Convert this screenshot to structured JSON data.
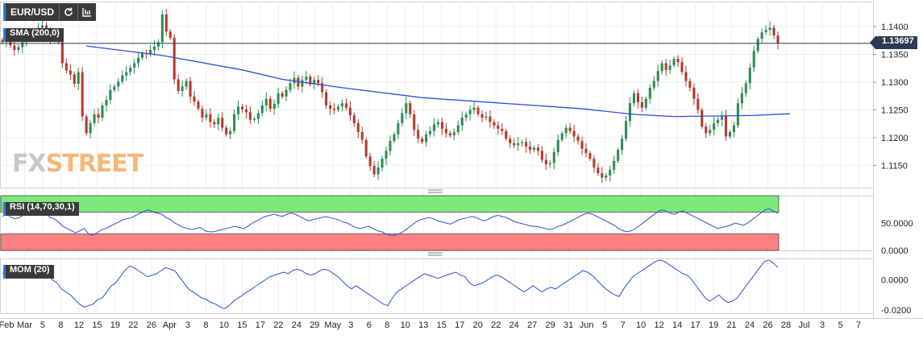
{
  "toolbar": {
    "symbol": "EUR/USD",
    "refresh_icon": "refresh-icon",
    "indicators_icon": "indicators-icon"
  },
  "price_tag": "1.13697",
  "logo": {
    "part1": "FX",
    "part2": "STREET"
  },
  "panels": {
    "main": {
      "tag": "SMA (200,0)"
    },
    "rsi": {
      "tag": "RSI (14,70,30,1)"
    },
    "mom": {
      "tag": "MOM (20)"
    }
  },
  "colors": {
    "up": "#2e8b57",
    "down": "#b23a2a",
    "sma": "#2b4fd8",
    "rsi_line": "#2b4fd8",
    "mom_line": "#2b4fd8",
    "overbought": "#7ce87c",
    "oversold": "#ff8080",
    "price_line": "#2b3a55"
  },
  "chart_data": [
    {
      "type": "candlestick",
      "title": "EUR/USD",
      "ylim": [
        1.111,
        1.1445
      ],
      "y_ticks": [
        "1.1150",
        "1.1200",
        "1.1250",
        "1.1300",
        "1.1350",
        "1.1400"
      ],
      "x_ticks": [
        "Feb",
        "Mar",
        "5",
        "8",
        "12",
        "15",
        "19",
        "22",
        "26",
        "Apr",
        "3",
        "8",
        "10",
        "15",
        "17",
        "22",
        "24",
        "29",
        "May",
        "3",
        "6",
        "8",
        "10",
        "13",
        "15",
        "17",
        "20",
        "22",
        "24",
        "27",
        "29",
        "31",
        "Jun",
        "5",
        "7",
        "10",
        "12",
        "14",
        "17",
        "19",
        "21",
        "24",
        "26",
        "28",
        "Jul",
        "3",
        "5",
        "7"
      ],
      "last_price": 1.13697,
      "series": [
        {
          "name": "SMA (200,0)",
          "points": [
            [
              21,
              1.1365
            ],
            [
              40,
              1.1348
            ],
            [
              60,
              1.1322
            ],
            [
              70,
              1.1305
            ],
            [
              85,
              1.129
            ],
            [
              105,
              1.1272
            ],
            [
              125,
              1.1262
            ],
            [
              145,
              1.1252
            ],
            [
              158,
              1.1242
            ],
            [
              168,
              1.1238
            ],
            [
              188,
              1.124
            ],
            [
              197,
              1.1243
            ]
          ]
        }
      ],
      "candles_close": [
        1.1372,
        1.138,
        1.1366,
        1.1358,
        1.1363,
        1.1372,
        1.1384,
        1.1381,
        1.1388,
        1.1398,
        1.1402,
        1.1391,
        1.1379,
        1.1382,
        1.1372,
        1.1334,
        1.1321,
        1.1314,
        1.1297,
        1.1318,
        1.1238,
        1.1208,
        1.1226,
        1.1242,
        1.1236,
        1.1258,
        1.1268,
        1.1286,
        1.1292,
        1.1301,
        1.1312,
        1.1318,
        1.1326,
        1.1334,
        1.1344,
        1.1352,
        1.1351,
        1.1358,
        1.1364,
        1.1372,
        1.1422,
        1.1391,
        1.138,
        1.1305,
        1.1284,
        1.1292,
        1.1302,
        1.1274,
        1.1265,
        1.1252,
        1.1236,
        1.1242,
        1.1228,
        1.1224,
        1.1236,
        1.1218,
        1.1206,
        1.1212,
        1.1242,
        1.1256,
        1.1251,
        1.1246,
        1.1232,
        1.1234,
        1.1244,
        1.1258,
        1.127,
        1.1252,
        1.1261,
        1.128,
        1.1274,
        1.1286,
        1.1298,
        1.1308,
        1.1292,
        1.1304,
        1.131,
        1.1296,
        1.1304,
        1.1298,
        1.1282,
        1.1258,
        1.1252,
        1.125,
        1.1256,
        1.1262,
        1.1254,
        1.124,
        1.1226,
        1.121,
        1.1196,
        1.1166,
        1.1149,
        1.1134,
        1.1146,
        1.1162,
        1.1176,
        1.1194,
        1.1206,
        1.1226,
        1.1244,
        1.1262,
        1.1242,
        1.1214,
        1.1198,
        1.1192,
        1.1206,
        1.1212,
        1.1224,
        1.1228,
        1.1216,
        1.1208,
        1.1204,
        1.121,
        1.1222,
        1.1236,
        1.1242,
        1.125,
        1.1254,
        1.1242,
        1.1236,
        1.1238,
        1.1228,
        1.1222,
        1.1216,
        1.1212,
        1.1198,
        1.119,
        1.1186,
        1.119,
        1.1192,
        1.1184,
        1.1178,
        1.1182,
        1.1176,
        1.116,
        1.1152,
        1.1154,
        1.1174,
        1.1196,
        1.1208,
        1.1218,
        1.1212,
        1.1202,
        1.1194,
        1.118,
        1.1172,
        1.1162,
        1.1146,
        1.1136,
        1.1128,
        1.1132,
        1.1142,
        1.1158,
        1.1178,
        1.1198,
        1.123,
        1.1262,
        1.128,
        1.1264,
        1.1254,
        1.127,
        1.129,
        1.1302,
        1.132,
        1.1334,
        1.1322,
        1.133,
        1.1342,
        1.1336,
        1.1318,
        1.1302,
        1.129,
        1.127,
        1.125,
        1.122,
        1.1208,
        1.1214,
        1.1226,
        1.1232,
        1.124,
        1.1202,
        1.121,
        1.1222,
        1.1262,
        1.128,
        1.1298,
        1.1326,
        1.1356,
        1.1378,
        1.139,
        1.1394,
        1.1398,
        1.1384,
        1.137
      ]
    },
    {
      "type": "line",
      "title": "RSI (14,70,30,1)",
      "ylim": [
        0,
        100
      ],
      "y_ticks": [
        "50.0000",
        "0.0000"
      ],
      "bands": [
        {
          "from": 70,
          "to": 100,
          "color": "#7ce87c"
        },
        {
          "from": 0,
          "to": 30,
          "color": "#ff8080"
        }
      ],
      "values": [
        62,
        68,
        60,
        58,
        60,
        66,
        70,
        66,
        68,
        70,
        72,
        60,
        58,
        52,
        44,
        40,
        36,
        32,
        36,
        40,
        30,
        28,
        32,
        38,
        40,
        44,
        48,
        52,
        56,
        58,
        60,
        64,
        68,
        72,
        74,
        70,
        68,
        66,
        60,
        56,
        50,
        46,
        42,
        40,
        38,
        40,
        42,
        36,
        34,
        34,
        36,
        38,
        40,
        42,
        44,
        42,
        40,
        44,
        50,
        54,
        58,
        62,
        64,
        66,
        64,
        62,
        66,
        68,
        66,
        62,
        58,
        54,
        56,
        58,
        60,
        62,
        60,
        58,
        56,
        52,
        50,
        46,
        42,
        40,
        42,
        44,
        40,
        36,
        34,
        30,
        28,
        28,
        30,
        34,
        40,
        46,
        52,
        56,
        58,
        60,
        58,
        54,
        52,
        50,
        48,
        52,
        56,
        58,
        60,
        62,
        60,
        56,
        54,
        58,
        62,
        64,
        62,
        60,
        56,
        52,
        50,
        48,
        46,
        44,
        44,
        42,
        40,
        38,
        40,
        44,
        46,
        50,
        54,
        58,
        62,
        66,
        68,
        66,
        62,
        58,
        54,
        50,
        46,
        40,
        36,
        34,
        36,
        40,
        46,
        52,
        58,
        64,
        70,
        74,
        72,
        68,
        66,
        70,
        72,
        68,
        64,
        60,
        56,
        52,
        48,
        44,
        40,
        42,
        44,
        46,
        50,
        48,
        46,
        50,
        56,
        62,
        68,
        74,
        76,
        72,
        68
      ]
    },
    {
      "type": "line",
      "title": "MOM (20)",
      "ylim": [
        -0.022,
        0.014
      ],
      "y_ticks": [
        "0.0000",
        "-0.0200"
      ],
      "values": [
        0.004,
        0.006,
        0.003,
        0.002,
        0.004,
        0.006,
        0.007,
        0.006,
        0.005,
        0.004,
        0.004,
        0.0,
        -0.002,
        -0.006,
        -0.008,
        -0.01,
        -0.013,
        -0.016,
        -0.018,
        -0.017,
        -0.016,
        -0.013,
        -0.012,
        -0.008,
        -0.004,
        -0.002,
        0.002,
        0.006,
        0.009,
        0.008,
        0.006,
        0.004,
        0.002,
        0.003,
        0.004,
        0.006,
        0.008,
        0.007,
        0.006,
        0.002,
        -0.002,
        -0.006,
        -0.008,
        -0.01,
        -0.012,
        -0.013,
        -0.015,
        -0.016,
        -0.018,
        -0.019,
        -0.017,
        -0.014,
        -0.012,
        -0.01,
        -0.008,
        -0.006,
        -0.004,
        -0.002,
        0.0,
        0.002,
        0.003,
        0.004,
        0.005,
        0.004,
        0.006,
        0.007,
        0.006,
        0.004,
        0.003,
        0.004,
        0.006,
        0.007,
        0.006,
        0.004,
        0.002,
        -0.001,
        -0.004,
        -0.006,
        -0.004,
        -0.006,
        -0.008,
        -0.01,
        -0.012,
        -0.014,
        -0.016,
        -0.017,
        -0.012,
        -0.008,
        -0.006,
        -0.004,
        -0.002,
        0.0,
        0.002,
        0.004,
        0.003,
        0.002,
        0.001,
        0.002,
        0.003,
        0.004,
        0.005,
        0.003,
        0.002,
        -0.002,
        -0.004,
        -0.003,
        -0.002,
        0.0,
        0.002,
        0.003,
        0.002,
        0.0,
        -0.002,
        -0.004,
        -0.006,
        -0.008,
        -0.006,
        -0.004,
        -0.006,
        -0.008,
        -0.006,
        -0.005,
        -0.006,
        -0.004,
        -0.002,
        0.0,
        0.002,
        0.004,
        0.006,
        0.005,
        0.003,
        0.0,
        -0.003,
        -0.006,
        -0.008,
        -0.01,
        -0.011,
        -0.006,
        -0.002,
        0.002,
        0.004,
        0.006,
        0.008,
        0.01,
        0.012,
        0.013,
        0.012,
        0.01,
        0.008,
        0.006,
        0.004,
        0.003,
        0.0,
        -0.004,
        -0.008,
        -0.012,
        -0.014,
        -0.012,
        -0.01,
        -0.013,
        -0.015,
        -0.014,
        -0.012,
        -0.008,
        -0.004,
        0.0,
        0.004,
        0.008,
        0.012,
        0.013,
        0.011,
        0.008
      ]
    }
  ]
}
